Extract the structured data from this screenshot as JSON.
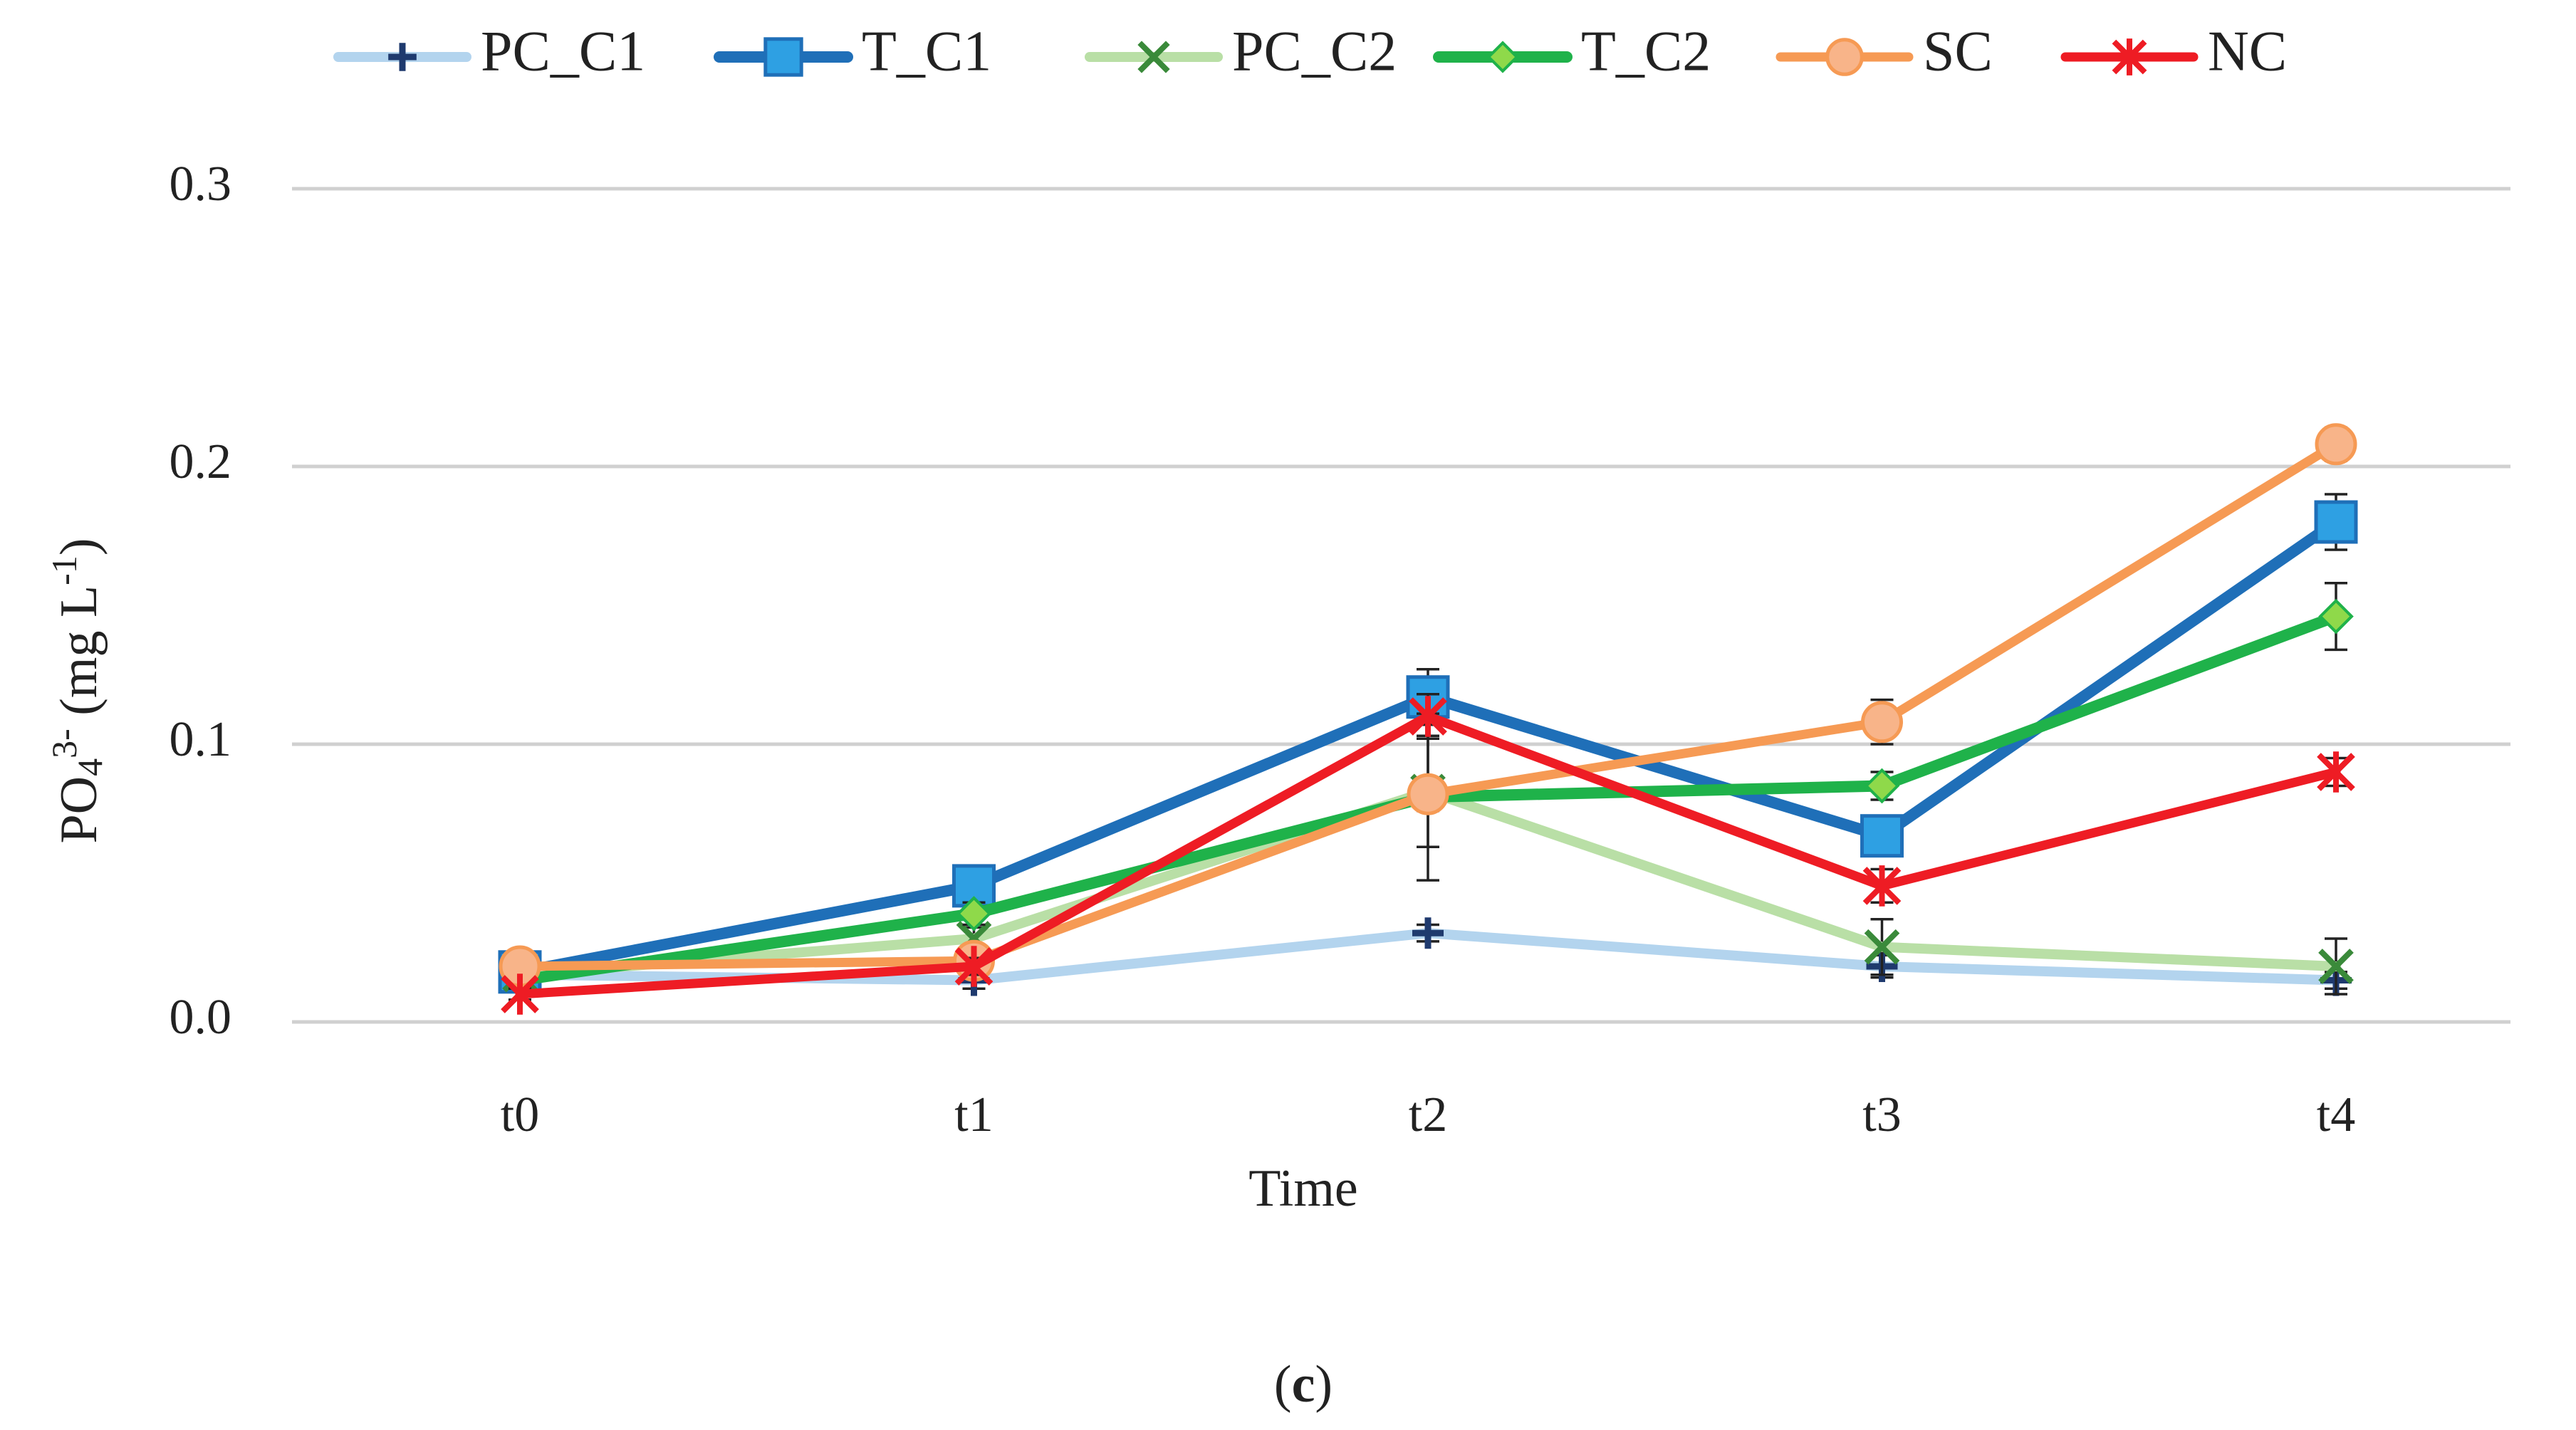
{
  "chart_data": {
    "type": "line",
    "xlabel": "Time",
    "ylabel": {
      "prefix": "PO",
      "sub": "4",
      "sup": "3-",
      "unit_open": " (mg L",
      "unit_sup": "-1",
      "unit_close": ")"
    },
    "caption": {
      "open": "(",
      "letter": "c",
      "close": ")"
    },
    "categories": [
      "t0",
      "t1",
      "t2",
      "t3",
      "t4"
    ],
    "ylim": [
      0,
      0.3
    ],
    "yticks": [
      {
        "value": 0.0,
        "label": "0.0"
      },
      {
        "value": 0.1,
        "label": "0.1"
      },
      {
        "value": 0.2,
        "label": "0.2"
      },
      {
        "value": 0.3,
        "label": "0.3"
      }
    ],
    "grid": "horizontal",
    "legend": "top",
    "series": [
      {
        "name": "PC_C1",
        "values": [
          0.017,
          0.015,
          0.032,
          0.02,
          0.015
        ],
        "errors": [
          0.002,
          0.003,
          0.003,
          0.004,
          0.003
        ],
        "color": "#b3d4ee",
        "marker": "plus",
        "marker_color": "#1f3a6e"
      },
      {
        "name": "T_C1",
        "values": [
          0.018,
          0.049,
          0.117,
          0.067,
          0.18
        ],
        "errors": [
          0.002,
          0.004,
          0.01,
          0.006,
          0.01
        ],
        "color": "#1f6fb8",
        "marker": "square",
        "marker_color": "#2ea0e3"
      },
      {
        "name": "PC_C2",
        "values": [
          0.017,
          0.03,
          0.083,
          0.027,
          0.02
        ],
        "errors": [
          0.002,
          0.004,
          0.02,
          0.01,
          0.01
        ],
        "color": "#b9dfa6",
        "marker": "x",
        "marker_color": "#3a8a3a"
      },
      {
        "name": "T_C2",
        "values": [
          0.015,
          0.039,
          0.081,
          0.085,
          0.146
        ],
        "errors": [
          0.002,
          0.004,
          0.03,
          0.005,
          0.012
        ],
        "color": "#1fb24a",
        "marker": "diamond",
        "marker_color": "#8fd94a"
      },
      {
        "name": "SC",
        "values": [
          0.02,
          0.022,
          0.082,
          0.108,
          0.208
        ],
        "errors": [
          0.002,
          0.003,
          0.006,
          0.008,
          0.006
        ],
        "color": "#f69a54",
        "marker": "circle",
        "marker_color": "#f8b489"
      },
      {
        "name": "NC",
        "values": [
          0.01,
          0.02,
          0.11,
          0.049,
          0.09
        ],
        "errors": [
          0.002,
          0.003,
          0.008,
          0.006,
          0.005
        ],
        "color": "#ee1c24",
        "marker": "star",
        "marker_color": "#ee1c24"
      }
    ]
  }
}
